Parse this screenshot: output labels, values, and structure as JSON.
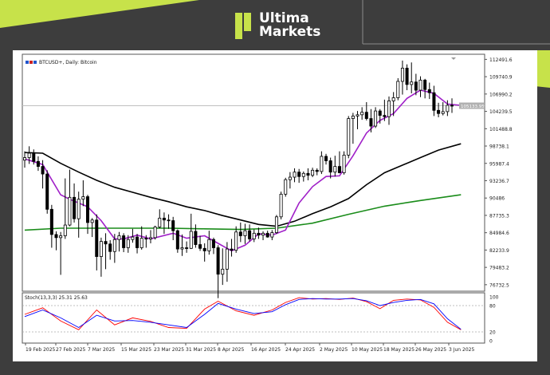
{
  "brand": {
    "line1": "Ultima",
    "line2": "Markets",
    "accent_color": "#c7e24a"
  },
  "chart_data": [
    {
      "type": "candlestick",
      "title": "BTCUSD+, Daily: Bitcoin",
      "x_labels": [
        "19 Feb 2025",
        "27 Feb 2025",
        "7 Mar 2025",
        "15 Mar 2025",
        "23 Mar 2025",
        "31 Mar 2025",
        "8 Apr 2025",
        "16 Apr 2025",
        "24 Apr 2025",
        "2 May 2025",
        "10 May 2025",
        "18 May 2025",
        "26 May 2025",
        "3 Jun 2025"
      ],
      "y_ticks": [
        112491.6,
        109740.9,
        106990.2,
        104239.5,
        101488.8,
        98738.1,
        95987.4,
        93236.7,
        90486.0,
        87735.3,
        84984.6,
        82233.9,
        79483.2,
        76732.5
      ],
      "ylim": [
        75700,
        113300
      ],
      "current_price_label": "105133.95",
      "current_price": 105133.95,
      "colors": {
        "up": "#ffffff",
        "down": "#000000",
        "ma_fast": "#a020c8",
        "ma_mid": "#000000",
        "ma_slow": "#1a8c1a",
        "price_line": "#c0c0c0"
      },
      "ohlc": [
        [
          96500,
          97900,
          95300,
          96900
        ],
        [
          96900,
          98700,
          95900,
          97600
        ],
        [
          97600,
          98200,
          95800,
          96300
        ],
        [
          96300,
          97100,
          94800,
          95500
        ],
        [
          95500,
          96500,
          92000,
          94300
        ],
        [
          94300,
          94900,
          88000,
          88700
        ],
        [
          88700,
          89400,
          82600,
          84700
        ],
        [
          84700,
          85200,
          82200,
          84200
        ],
        [
          84200,
          85100,
          78300,
          84500
        ],
        [
          84500,
          93600,
          84000,
          86200
        ],
        [
          86200,
          95000,
          86000,
          90600
        ],
        [
          90600,
          92800,
          86600,
          87200
        ],
        [
          87200,
          91500,
          84200,
          90300
        ],
        [
          90300,
          93300,
          89200,
          90700
        ],
        [
          90700,
          91000,
          84800,
          86600
        ],
        [
          86600,
          87300,
          84300,
          87000
        ],
        [
          87000,
          87900,
          79000,
          81200
        ],
        [
          81200,
          84200,
          78000,
          83600
        ],
        [
          83600,
          84900,
          79200,
          83200
        ],
        [
          83200,
          83800,
          80700,
          82000
        ],
        [
          82000,
          84800,
          80200,
          83900
        ],
        [
          83900,
          85100,
          82000,
          84500
        ],
        [
          84500,
          84900,
          81900,
          82600
        ],
        [
          82600,
          84600,
          81800,
          83900
        ],
        [
          83900,
          85600,
          83400,
          84300
        ],
        [
          84300,
          84800,
          81700,
          82600
        ],
        [
          82600,
          86000,
          82300,
          84100
        ],
        [
          84100,
          84600,
          82600,
          84000
        ],
        [
          84000,
          85400,
          83300,
          84200
        ],
        [
          84200,
          86100,
          83900,
          85900
        ],
        [
          85900,
          88700,
          85700,
          87300
        ],
        [
          87300,
          88200,
          84800,
          87000
        ],
        [
          87000,
          87900,
          85600,
          86900
        ],
        [
          86900,
          87500,
          83800,
          85300
        ],
        [
          85300,
          85500,
          81800,
          82400
        ],
        [
          82400,
          84700,
          81300,
          82600
        ],
        [
          82600,
          83600,
          81800,
          82500
        ],
        [
          82500,
          88000,
          82400,
          85200
        ],
        [
          85200,
          86300,
          82600,
          83100
        ],
        [
          83100,
          84500,
          82100,
          82500
        ],
        [
          82500,
          83300,
          80400,
          82100
        ],
        [
          82100,
          85300,
          81500,
          83900
        ],
        [
          83900,
          84200,
          81600,
          82600
        ],
        [
          82600,
          83000,
          74600,
          78400
        ],
        [
          78400,
          82500,
          76700,
          79200
        ],
        [
          79200,
          83500,
          77200,
          82400
        ],
        [
          82400,
          84000,
          81200,
          82200
        ],
        [
          82200,
          86000,
          81800,
          85100
        ],
        [
          85100,
          86600,
          83500,
          84500
        ],
        [
          84500,
          86400,
          83200,
          85300
        ],
        [
          85300,
          86300,
          83600,
          84000
        ],
        [
          84000,
          85500,
          83500,
          84900
        ],
        [
          84900,
          85800,
          84000,
          84600
        ],
        [
          84600,
          85200,
          83800,
          84900
        ],
        [
          84900,
          85300,
          84200,
          84300
        ],
        [
          84300,
          85400,
          83800,
          85000
        ],
        [
          85000,
          87800,
          84800,
          87500
        ],
        [
          87500,
          91500,
          87100,
          91100
        ],
        [
          91100,
          93700,
          90700,
          93400
        ],
        [
          93400,
          94600,
          92000,
          93800
        ],
        [
          93800,
          95200,
          93000,
          94600
        ],
        [
          94600,
          95100,
          92900,
          93900
        ],
        [
          93900,
          94700,
          93100,
          94400
        ],
        [
          94400,
          95200,
          93300,
          94100
        ],
        [
          94100,
          95300,
          93800,
          94900
        ],
        [
          94900,
          95200,
          94100,
          94700
        ],
        [
          94700,
          97900,
          94300,
          97100
        ],
        [
          97100,
          97500,
          95800,
          96400
        ],
        [
          96400,
          96900,
          93600,
          94600
        ],
        [
          94600,
          97200,
          93900,
          95500
        ],
        [
          95500,
          97900,
          94400,
          94500
        ],
        [
          94500,
          97900,
          94200,
          97300
        ],
        [
          97300,
          103500,
          96800,
          103100
        ],
        [
          103100,
          104000,
          99100,
          103500
        ],
        [
          103500,
          104300,
          101400,
          103700
        ],
        [
          103700,
          104900,
          102900,
          104100
        ],
        [
          104100,
          105700,
          102800,
          103100
        ],
        [
          103100,
          104600,
          100900,
          101900
        ],
        [
          101900,
          104900,
          101600,
          104300
        ],
        [
          104300,
          104600,
          102300,
          103600
        ],
        [
          103600,
          106100,
          102700,
          103400
        ],
        [
          103400,
          106600,
          102100,
          105900
        ],
        [
          105900,
          107300,
          103500,
          106400
        ],
        [
          106400,
          109500,
          106000,
          109000
        ],
        [
          109000,
          112300,
          106900,
          111100
        ],
        [
          111100,
          111700,
          107600,
          108500
        ],
        [
          108500,
          112000,
          107100,
          108900
        ],
        [
          108900,
          110200,
          106800,
          107600
        ],
        [
          107600,
          109800,
          106500,
          109200
        ],
        [
          109200,
          109400,
          106300,
          107700
        ],
        [
          107700,
          108800,
          106200,
          107200
        ],
        [
          107200,
          108300,
          103500,
          104400
        ],
        [
          104400,
          105600,
          103300,
          103900
        ],
        [
          103900,
          105700,
          103600,
          104200
        ],
        [
          104200,
          106000,
          103500,
          105200
        ],
        [
          105200,
          106300,
          104000,
          105100
        ]
      ],
      "ma_fast": [
        [
          0,
          96700
        ],
        [
          4,
          95800
        ],
        [
          8,
          91000
        ],
        [
          10,
          90300
        ],
        [
          14,
          89100
        ],
        [
          17,
          86900
        ],
        [
          20,
          84000
        ],
        [
          22,
          84000
        ],
        [
          25,
          84600
        ],
        [
          28,
          84000
        ],
        [
          33,
          84900
        ],
        [
          36,
          84100
        ],
        [
          40,
          84500
        ],
        [
          43,
          83300
        ],
        [
          46,
          82100
        ],
        [
          49,
          83000
        ],
        [
          52,
          84800
        ],
        [
          55,
          84600
        ],
        [
          58,
          85400
        ],
        [
          61,
          89700
        ],
        [
          64,
          92300
        ],
        [
          67,
          93900
        ],
        [
          70,
          94000
        ],
        [
          73,
          97200
        ],
        [
          76,
          100800
        ],
        [
          79,
          102800
        ],
        [
          82,
          103900
        ],
        [
          85,
          106300
        ],
        [
          88,
          107600
        ],
        [
          91,
          107100
        ],
        [
          94,
          105400
        ],
        [
          97,
          105200
        ]
      ],
      "ma_mid": [
        [
          0,
          97700
        ],
        [
          4,
          97600
        ],
        [
          8,
          96000
        ],
        [
          12,
          94600
        ],
        [
          16,
          93300
        ],
        [
          20,
          92200
        ],
        [
          24,
          91400
        ],
        [
          28,
          90600
        ],
        [
          32,
          89900
        ],
        [
          36,
          89100
        ],
        [
          40,
          88500
        ],
        [
          44,
          87700
        ],
        [
          48,
          87000
        ],
        [
          52,
          86300
        ],
        [
          56,
          86000
        ],
        [
          60,
          86800
        ],
        [
          64,
          88000
        ],
        [
          68,
          89100
        ],
        [
          72,
          90400
        ],
        [
          76,
          92600
        ],
        [
          80,
          94500
        ],
        [
          84,
          95700
        ],
        [
          88,
          96900
        ],
        [
          92,
          98100
        ],
        [
          97,
          99100
        ]
      ],
      "ma_slow": [
        [
          0,
          85400
        ],
        [
          8,
          85700
        ],
        [
          16,
          85700
        ],
        [
          24,
          85700
        ],
        [
          32,
          85700
        ],
        [
          40,
          85600
        ],
        [
          48,
          85500
        ],
        [
          56,
          85700
        ],
        [
          64,
          86500
        ],
        [
          72,
          87900
        ],
        [
          80,
          89200
        ],
        [
          88,
          90100
        ],
        [
          97,
          91000
        ]
      ]
    },
    {
      "type": "line",
      "title": "Stoch(13,3,3) 25.31 25.63",
      "y_ticks": [
        100.0,
        80.0,
        20.0,
        0.0
      ],
      "ylim": [
        0,
        100
      ],
      "levels": [
        80,
        20
      ],
      "series": [
        {
          "color": "#ff0000",
          "x": [
            0,
            4,
            8,
            12,
            16,
            20,
            24,
            28,
            32,
            36,
            40,
            43,
            47,
            51,
            55,
            58,
            61,
            64,
            67,
            70,
            73,
            76,
            79,
            82,
            85,
            88,
            91,
            94,
            97
          ],
          "values": [
            60,
            75,
            45,
            25,
            70,
            36,
            52,
            44,
            30,
            28,
            72,
            90,
            68,
            58,
            70,
            87,
            98,
            95,
            96,
            94,
            97,
            89,
            73,
            92,
            95,
            93,
            76,
            42,
            25
          ]
        },
        {
          "color": "#0000ff",
          "x": [
            0,
            4,
            8,
            12,
            16,
            20,
            24,
            28,
            32,
            36,
            40,
            43,
            47,
            51,
            55,
            58,
            61,
            64,
            67,
            70,
            73,
            76,
            79,
            82,
            85,
            88,
            91,
            94,
            97
          ],
          "values": [
            55,
            70,
            52,
            30,
            58,
            45,
            46,
            42,
            36,
            30,
            60,
            85,
            72,
            62,
            66,
            82,
            94,
            96,
            95,
            95,
            96,
            91,
            80,
            87,
            92,
            94,
            84,
            50,
            26
          ]
        }
      ]
    }
  ]
}
